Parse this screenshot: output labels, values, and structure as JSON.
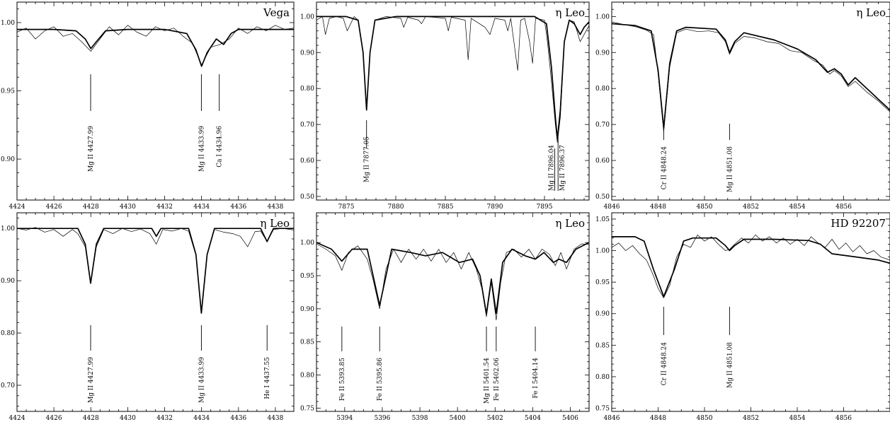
{
  "figure": {
    "background": "#ffffff",
    "ink": "#000000"
  },
  "chart_data": [
    {
      "type": "line",
      "star": "Vega",
      "xlim": [
        4424,
        4439
      ],
      "ylim": [
        0.87,
        1.015
      ],
      "xticks": [
        4424,
        4426,
        4428,
        4430,
        4432,
        4434,
        4436,
        4438
      ],
      "yticks": [
        0.9,
        0.95,
        1.0
      ],
      "ytick_labels": [
        "0.90",
        "0.95",
        "1.00"
      ],
      "series": [
        {
          "style": "thick",
          "x": [
            4424,
            4426,
            4427.2,
            4427.7,
            4428.0,
            4428.3,
            4428.8,
            4430,
            4432,
            4433.2,
            4433.7,
            4434.0,
            4434.3,
            4434.8,
            4435.2,
            4435.6,
            4436,
            4438,
            4439
          ],
          "y": [
            0.995,
            0.995,
            0.994,
            0.988,
            0.981,
            0.986,
            0.994,
            0.995,
            0.995,
            0.992,
            0.98,
            0.968,
            0.978,
            0.988,
            0.984,
            0.992,
            0.995,
            0.995,
            0.995
          ]
        },
        {
          "style": "thin",
          "x": [
            4424,
            4424.5,
            4425,
            4425.5,
            4426,
            4426.5,
            4427,
            4427.5,
            4428,
            4428.5,
            4429,
            4429.5,
            4430,
            4430.5,
            4431,
            4431.5,
            4432,
            4432.5,
            4433,
            4433.5,
            4434,
            4434.5,
            4435,
            4435.5,
            4436,
            4436.5,
            4437,
            4437.5,
            4438,
            4438.5,
            4439
          ],
          "y": [
            0.993,
            0.996,
            0.988,
            0.994,
            0.997,
            0.99,
            0.992,
            0.986,
            0.979,
            0.988,
            0.997,
            0.991,
            0.998,
            0.993,
            0.99,
            0.997,
            0.994,
            0.996,
            0.99,
            0.985,
            0.969,
            0.982,
            0.984,
            0.988,
            0.996,
            0.992,
            0.997,
            0.994,
            0.998,
            0.995,
            0.996
          ]
        }
      ],
      "line_ids": [
        {
          "label": "Mg II 4427.99",
          "x": 4427.99
        },
        {
          "label": "Mg II 4433.99",
          "x": 4433.99
        },
        {
          "label": "Ca I 4434.96",
          "x": 4434.96
        }
      ]
    },
    {
      "type": "line",
      "star": "η Leo",
      "xlim": [
        7872,
        7899.5
      ],
      "ylim": [
        0.49,
        1.04
      ],
      "xticks": [
        7875,
        7880,
        7885,
        7890,
        7895
      ],
      "yticks": [
        0.5,
        0.6,
        0.7,
        0.8,
        0.9,
        1.0
      ],
      "ytick_labels": [
        "0.50",
        "0.60",
        "0.70",
        "0.80",
        "0.90",
        "1.00"
      ],
      "series": [
        {
          "style": "thick",
          "x": [
            7872,
            7875,
            7876.2,
            7876.7,
            7877.05,
            7877.4,
            7877.9,
            7880,
            7885,
            7890,
            7894,
            7895.2,
            7895.7,
            7896.1,
            7896.3,
            7896.6,
            7897.0,
            7897.5,
            7898,
            7898.6,
            7899,
            7899.5
          ],
          "y": [
            1.0,
            1.0,
            0.99,
            0.9,
            0.74,
            0.9,
            0.99,
            1.0,
            1.0,
            1.0,
            1.0,
            0.98,
            0.86,
            0.72,
            0.66,
            0.74,
            0.93,
            0.99,
            0.98,
            0.95,
            0.97,
            0.985
          ]
        },
        {
          "style": "thin",
          "x": [
            7872,
            7872.6,
            7872.9,
            7873.3,
            7874,
            7874.7,
            7875.1,
            7875.8,
            7876.2,
            7876.7,
            7877.05,
            7877.4,
            7877.9,
            7879,
            7880.5,
            7880.8,
            7881.2,
            7882.3,
            7882.6,
            7883,
            7885,
            7885.3,
            7885.6,
            7887,
            7887.3,
            7887.6,
            7889,
            7889.5,
            7890,
            7891,
            7891.3,
            7891.6,
            7892.3,
            7892.6,
            7893,
            7893.5,
            7893.8,
            7894.1,
            7895,
            7895.3,
            7895.7,
            7896.1,
            7896.3,
            7896.6,
            7897,
            7897.5,
            7898,
            7898.6,
            7899,
            7899.5
          ],
          "y": [
            0.99,
            1.0,
            0.95,
            0.995,
            1.0,
            0.995,
            0.96,
            1.0,
            0.99,
            0.9,
            0.74,
            0.9,
            0.99,
            1.0,
            0.995,
            0.97,
            0.998,
            0.99,
            0.98,
            1.0,
            0.995,
            0.96,
            0.998,
            0.99,
            0.88,
            0.995,
            0.97,
            0.95,
            0.995,
            0.99,
            0.96,
            0.995,
            0.85,
            0.99,
            0.995,
            0.93,
            0.87,
            0.995,
            0.99,
            0.93,
            0.82,
            0.7,
            0.65,
            0.72,
            0.93,
            0.99,
            0.985,
            0.93,
            0.95,
            0.975
          ]
        }
      ],
      "line_ids": [
        {
          "label": "Mg II 7877.05",
          "x": 7877.05
        },
        {
          "label": "Mg II 7896.04",
          "x": 7896.04
        },
        {
          "label": "Mg II 7896.37",
          "x": 7896.37
        }
      ]
    },
    {
      "type": "line",
      "star": "η Leo",
      "xlim": [
        4846,
        4858
      ],
      "ylim": [
        0.49,
        1.04
      ],
      "xticks": [
        4846,
        4848,
        4850,
        4852,
        4854,
        4856
      ],
      "yticks": [
        0.5,
        0.6,
        0.7,
        0.8,
        0.9,
        1.0
      ],
      "ytick_labels": [
        "0.50",
        "0.60",
        "0.70",
        "0.80",
        "0.90",
        "1.00"
      ],
      "series": [
        {
          "style": "thick",
          "x": [
            4846,
            4847,
            4847.7,
            4848.0,
            4848.24,
            4848.5,
            4848.8,
            4849.2,
            4850.5,
            4850.9,
            4851.08,
            4851.3,
            4851.7,
            4853,
            4854,
            4854.8,
            4855.3,
            4855.6,
            4855.9,
            4856.2,
            4856.5,
            4857,
            4857.5,
            4858
          ],
          "y": [
            0.98,
            0.975,
            0.96,
            0.85,
            0.69,
            0.87,
            0.96,
            0.97,
            0.965,
            0.935,
            0.9,
            0.93,
            0.955,
            0.935,
            0.91,
            0.88,
            0.845,
            0.855,
            0.84,
            0.81,
            0.83,
            0.8,
            0.77,
            0.74
          ]
        },
        {
          "style": "thin",
          "x": [
            4846,
            4846.5,
            4847,
            4847.5,
            4847.8,
            4848.0,
            4848.24,
            4848.5,
            4848.8,
            4849.2,
            4849.7,
            4850.2,
            4850.6,
            4850.9,
            4851.08,
            4851.3,
            4851.7,
            4852.2,
            4852.7,
            4853.2,
            4853.7,
            4854.2,
            4854.7,
            4855.1,
            4855.4,
            4855.6,
            4855.9,
            4856.2,
            4856.5,
            4857,
            4857.5,
            4858
          ],
          "y": [
            0.985,
            0.978,
            0.972,
            0.962,
            0.95,
            0.84,
            0.68,
            0.86,
            0.955,
            0.965,
            0.958,
            0.96,
            0.955,
            0.93,
            0.895,
            0.925,
            0.945,
            0.94,
            0.93,
            0.925,
            0.905,
            0.9,
            0.878,
            0.865,
            0.84,
            0.85,
            0.835,
            0.805,
            0.82,
            0.79,
            0.765,
            0.735
          ]
        }
      ],
      "line_ids": [
        {
          "label": "Cr II 4848.24",
          "x": 4848.24
        },
        {
          "label": "Mg II 4851.08",
          "x": 4851.08
        }
      ]
    },
    {
      "type": "line",
      "star": "η Leo",
      "xlim": [
        4424,
        4439
      ],
      "ylim": [
        0.65,
        1.03
      ],
      "xticks": [
        4424,
        4426,
        4428,
        4430,
        4432,
        4434,
        4436,
        4438
      ],
      "yticks": [
        0.7,
        0.8,
        0.9,
        1.0
      ],
      "ytick_labels": [
        "0.70",
        "0.80",
        "0.90",
        "1.00"
      ],
      "series": [
        {
          "style": "thick",
          "x": [
            4424,
            4427.3,
            4427.7,
            4427.99,
            4428.3,
            4428.7,
            4431.3,
            4431.55,
            4431.8,
            4433.3,
            4433.7,
            4433.99,
            4434.3,
            4434.7,
            4437.2,
            4437.55,
            4437.9,
            4439
          ],
          "y": [
            1.0,
            1.0,
            0.97,
            0.895,
            0.97,
            1.0,
            1.0,
            0.985,
            1.0,
            1.0,
            0.95,
            0.838,
            0.95,
            1.0,
            1.0,
            0.975,
            1.0,
            1.0
          ]
        },
        {
          "style": "thin",
          "x": [
            4424,
            4424.5,
            4425,
            4425.5,
            4426,
            4426.5,
            4427,
            4427.3,
            4427.7,
            4427.99,
            4428.3,
            4428.7,
            4429.2,
            4429.7,
            4430.2,
            4430.7,
            4431.2,
            4431.55,
            4431.9,
            4432.4,
            4432.9,
            4433.3,
            4433.7,
            4433.99,
            4434.3,
            4434.7,
            4435.2,
            4435.7,
            4436.1,
            4436.5,
            4436.9,
            4437.2,
            4437.55,
            4437.9,
            4438.4,
            4439
          ],
          "y": [
            1.0,
            0.997,
            1.002,
            0.993,
            0.998,
            0.985,
            0.998,
            0.99,
            0.965,
            0.895,
            0.965,
            0.998,
            0.99,
            1.0,
            0.994,
            0.999,
            0.99,
            0.97,
            0.998,
            0.995,
            1.0,
            0.995,
            0.948,
            0.838,
            0.948,
            0.998,
            0.993,
            0.99,
            0.985,
            0.965,
            0.994,
            0.995,
            0.975,
            0.998,
            1.0,
            0.997
          ]
        }
      ],
      "line_ids": [
        {
          "label": "Mg II 4427.99",
          "x": 4427.99
        },
        {
          "label": "Mg II 4433.99",
          "x": 4433.99
        },
        {
          "label": "He I 4437.55",
          "x": 4437.55
        }
      ]
    },
    {
      "type": "line",
      "star": "η Leo",
      "xlim": [
        5392.5,
        5407
      ],
      "ylim": [
        0.745,
        1.045
      ],
      "xticks": [
        5394,
        5396,
        5398,
        5400,
        5402,
        5404,
        5406
      ],
      "yticks": [
        0.75,
        0.8,
        0.85,
        0.9,
        0.95,
        1.0
      ],
      "ytick_labels": [
        "0.75",
        "0.80",
        "0.85",
        "0.90",
        "0.95",
        "1.00"
      ],
      "series": [
        {
          "style": "thick",
          "x": [
            5392.5,
            5393.3,
            5393.85,
            5394.4,
            5395.2,
            5395.86,
            5396.5,
            5397.5,
            5398.3,
            5399.2,
            5400.1,
            5400.8,
            5401.2,
            5401.54,
            5401.8,
            5402.06,
            5402.4,
            5402.9,
            5403.6,
            5404.14,
            5404.6,
            5405.1,
            5405.4,
            5405.8,
            5406.3,
            5407
          ],
          "y": [
            1.0,
            0.99,
            0.972,
            0.99,
            0.99,
            0.905,
            0.99,
            0.985,
            0.98,
            0.985,
            0.97,
            0.975,
            0.95,
            0.892,
            0.945,
            0.893,
            0.97,
            0.99,
            0.98,
            0.975,
            0.985,
            0.97,
            0.975,
            0.97,
            0.99,
            1.0
          ]
        },
        {
          "style": "thin",
          "x": [
            5392.5,
            5393,
            5393.5,
            5393.85,
            5394.2,
            5394.7,
            5395.2,
            5395.5,
            5395.86,
            5396.2,
            5396.6,
            5397,
            5397.4,
            5397.8,
            5398.2,
            5398.6,
            5399,
            5399.4,
            5399.8,
            5400.2,
            5400.6,
            5401.0,
            5401.3,
            5401.54,
            5401.8,
            5402.06,
            5402.3,
            5402.6,
            5403,
            5403.4,
            5403.8,
            5404.14,
            5404.5,
            5404.9,
            5405.2,
            5405.5,
            5405.8,
            5406.2,
            5406.6,
            5407
          ],
          "y": [
            0.998,
            0.99,
            0.98,
            0.958,
            0.985,
            0.995,
            0.975,
            0.945,
            0.9,
            0.96,
            0.99,
            0.97,
            0.99,
            0.975,
            0.99,
            0.972,
            0.99,
            0.97,
            0.985,
            0.96,
            0.985,
            0.96,
            0.93,
            0.888,
            0.94,
            0.883,
            0.94,
            0.985,
            0.99,
            0.978,
            0.99,
            0.975,
            0.99,
            0.982,
            0.965,
            0.985,
            0.96,
            0.99,
            0.998,
            0.997
          ]
        }
      ],
      "line_ids": [
        {
          "label": "Fe II 5393.85",
          "x": 5393.85
        },
        {
          "label": "Fe II 5395.86",
          "x": 5395.86
        },
        {
          "label": "Mg II 5401.54",
          "x": 5401.54
        },
        {
          "label": "Fe II 5402.06",
          "x": 5402.06
        },
        {
          "label": "Fe I 5404.14",
          "x": 5404.14
        }
      ]
    },
    {
      "type": "line",
      "star": "HD 92207",
      "xlim": [
        4846,
        4858
      ],
      "ylim": [
        0.745,
        1.06
      ],
      "xticks": [
        4846,
        4848,
        4850,
        4852,
        4854,
        4856
      ],
      "yticks": [
        0.75,
        0.8,
        0.85,
        0.9,
        0.95,
        1.0,
        1.05
      ],
      "ytick_labels": [
        "0.75",
        "0.80",
        "0.85",
        "0.90",
        "0.95",
        "1.00",
        "1.05"
      ],
      "series": [
        {
          "style": "thick",
          "x": [
            4846,
            4847.0,
            4847.4,
            4847.8,
            4848.24,
            4848.7,
            4849.1,
            4849.5,
            4850.5,
            4850.9,
            4851.08,
            4851.3,
            4851.7,
            4853,
            4854.5,
            4855,
            4855.5,
            4856.5,
            4857.5,
            4858
          ],
          "y": [
            1.022,
            1.022,
            1.015,
            0.97,
            0.927,
            0.97,
            1.015,
            1.02,
            1.02,
            1.008,
            1.0,
            1.008,
            1.018,
            1.018,
            1.016,
            1.01,
            0.995,
            0.99,
            0.985,
            0.98
          ]
        },
        {
          "style": "thin",
          "x": [
            4846,
            4846.3,
            4846.6,
            4846.9,
            4847.2,
            4847.5,
            4847.8,
            4848.0,
            4848.24,
            4848.5,
            4848.8,
            4849.1,
            4849.4,
            4849.7,
            4850,
            4850.3,
            4850.6,
            4850.9,
            4851.08,
            4851.3,
            4851.6,
            4851.9,
            4852.2,
            4852.5,
            4852.8,
            4853.1,
            4853.4,
            4853.7,
            4854,
            4854.3,
            4854.6,
            4854.9,
            4855.2,
            4855.5,
            4855.8,
            4856.1,
            4856.4,
            4856.7,
            4857,
            4857.3,
            4857.6,
            4858
          ],
          "y": [
            1.005,
            1.012,
            1.0,
            1.008,
            0.995,
            0.985,
            0.96,
            0.94,
            0.925,
            0.945,
            0.99,
            1.01,
            1.005,
            1.025,
            1.015,
            1.022,
            1.01,
            1.0,
            1.002,
            1.01,
            1.02,
            1.012,
            1.025,
            1.015,
            1.022,
            1.012,
            1.02,
            1.01,
            1.018,
            1.008,
            1.022,
            1.012,
            1.005,
            1.018,
            1.002,
            1.012,
            0.998,
            1.008,
            0.995,
            1.0,
            0.99,
            0.985
          ]
        }
      ],
      "line_ids": [
        {
          "label": "Cr II 4848.24",
          "x": 4848.24
        },
        {
          "label": "Mg II 4851.08",
          "x": 4851.08
        }
      ]
    }
  ]
}
